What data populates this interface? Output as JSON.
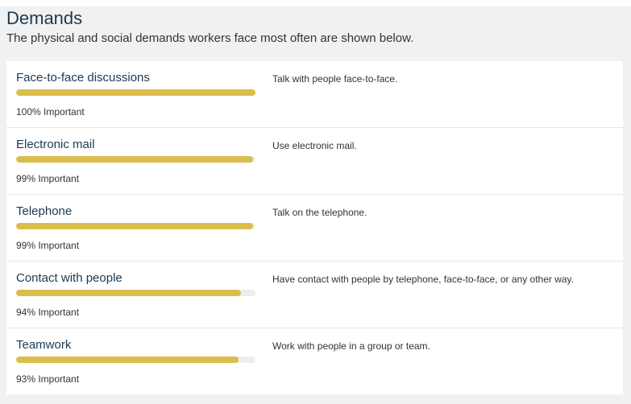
{
  "section": {
    "title": "Demands",
    "subtitle": "The physical and social demands workers face most often are shown below."
  },
  "accent_color": "#dbbd4c",
  "demands": [
    {
      "name": "Face-to-face discussions",
      "importance_label": "100% Important",
      "importance": 100,
      "description": "Talk with people face-to-face."
    },
    {
      "name": "Electronic mail",
      "importance_label": "99% Important",
      "importance": 99,
      "description": "Use electronic mail."
    },
    {
      "name": "Telephone",
      "importance_label": "99% Important",
      "importance": 99,
      "description": "Talk on the telephone."
    },
    {
      "name": "Contact with people",
      "importance_label": "94% Important",
      "importance": 94,
      "description": "Have contact with people by telephone, face-to-face, or any other way."
    },
    {
      "name": "Teamwork",
      "importance_label": "93% Important",
      "importance": 93,
      "description": "Work with people in a group or team."
    }
  ]
}
